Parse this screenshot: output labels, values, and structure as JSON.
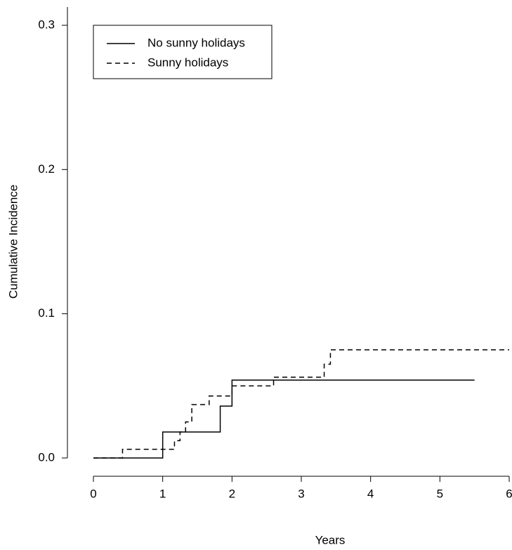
{
  "chart_data": {
    "type": "step",
    "xlabel": "Years",
    "ylabel": "Cumulative Incidence",
    "xlim": [
      0,
      6
    ],
    "xticks": [
      0,
      1,
      2,
      3,
      4,
      5,
      6
    ],
    "ylim": [
      0,
      0.3
    ],
    "yticks": [
      {
        "value": 0,
        "label": "0.0"
      },
      0.1,
      0.2,
      0.3
    ],
    "legend": "top-left",
    "series": [
      {
        "name": "No sunny holidays",
        "color": "#000000",
        "linestyle": "solid",
        "x": [
          0,
          1,
          1.83,
          2,
          5.5
        ],
        "values": [
          0,
          0.018,
          0.036,
          0.054,
          0.054
        ]
      },
      {
        "name": "Sunny holidays",
        "color": "#000000",
        "linestyle": "dashed",
        "x": [
          0,
          0.42,
          1.17,
          1.25,
          1.33,
          1.42,
          1.67,
          2,
          2.6,
          3.33,
          3.42,
          6
        ],
        "values": [
          0,
          0.006,
          0.012,
          0.018,
          0.025,
          0.037,
          0.043,
          0.05,
          0.056,
          0.065,
          0.075,
          0.075
        ]
      }
    ]
  }
}
